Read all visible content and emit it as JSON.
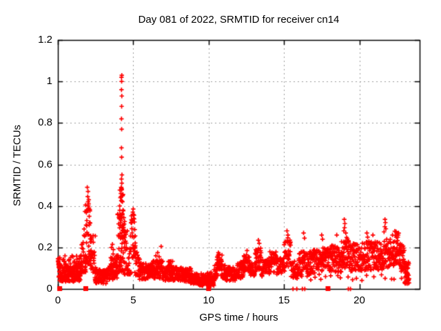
{
  "chart_data": {
    "type": "scatter",
    "title": "Day 081 of 2022, SRMTID for receiver cn14",
    "xlabel": "GPS time / hours",
    "ylabel": "SRMTID / TECUs",
    "xlim": [
      0,
      24
    ],
    "ylim": [
      0,
      1.2
    ],
    "xticks": {
      "values": [
        0,
        5,
        10,
        15,
        20
      ],
      "labels": [
        "0",
        "5",
        "10",
        "15",
        "20"
      ]
    },
    "yticks": {
      "values": [
        0,
        0.2,
        0.4,
        0.6,
        0.8,
        1.0,
        1.2
      ],
      "labels": [
        "0",
        "0.2",
        "0.4",
        "0.6",
        "0.8",
        "1",
        "1.2"
      ]
    },
    "grid": true,
    "legend": "none",
    "marker": "plus",
    "colors": {
      "points": "#ff0000",
      "grid": "#999999",
      "border": "#000000",
      "background": "#ffffff",
      "text": "#000000"
    },
    "seed": 20220811,
    "series": [
      {
        "name": "SRMTID",
        "bands": [
          [
            0.0,
            0.15,
            10,
            0.1,
            0.155,
            1
          ],
          [
            0.05,
            1.55,
            150,
            0.035,
            0.115,
            1
          ],
          [
            0.3,
            1.5,
            40,
            0.1,
            0.16,
            2
          ],
          [
            1.5,
            1.85,
            35,
            0.08,
            0.3,
            2
          ],
          [
            1.8,
            2.2,
            45,
            0.12,
            0.42,
            1.5
          ],
          [
            2.15,
            2.5,
            30,
            0.08,
            0.28,
            2
          ],
          [
            2.45,
            3.3,
            90,
            0.025,
            0.095,
            1
          ],
          [
            3.3,
            3.95,
            60,
            0.04,
            0.13,
            1
          ],
          [
            3.5,
            3.95,
            14,
            0.12,
            0.175,
            1
          ],
          [
            3.95,
            4.45,
            70,
            0.08,
            0.38,
            1.6
          ],
          [
            4.1,
            4.35,
            25,
            0.22,
            0.5,
            1
          ],
          [
            4.4,
            4.85,
            40,
            0.07,
            0.28,
            1.6
          ],
          [
            4.85,
            5.15,
            30,
            0.15,
            0.36,
            1.2
          ],
          [
            5.1,
            5.45,
            25,
            0.06,
            0.18,
            1.4
          ],
          [
            5.4,
            6.3,
            90,
            0.045,
            0.125,
            1
          ],
          [
            6.3,
            7.0,
            70,
            0.05,
            0.14,
            1
          ],
          [
            7.0,
            8.3,
            110,
            0.04,
            0.105,
            1
          ],
          [
            7.3,
            7.7,
            15,
            0.1,
            0.135,
            1
          ],
          [
            8.3,
            8.85,
            55,
            0.035,
            0.1,
            1
          ],
          [
            8.8,
            9.35,
            55,
            0.025,
            0.075,
            1
          ],
          [
            9.3,
            10.35,
            115,
            0.015,
            0.055,
            1
          ],
          [
            9.5,
            10.25,
            30,
            0.05,
            0.08,
            2
          ],
          [
            10.35,
            10.6,
            25,
            0.04,
            0.12,
            1.3
          ],
          [
            10.55,
            10.9,
            30,
            0.08,
            0.17,
            1
          ],
          [
            10.85,
            11.15,
            25,
            0.05,
            0.12,
            1.3
          ],
          [
            11.1,
            11.9,
            70,
            0.04,
            0.105,
            1
          ],
          [
            11.9,
            12.4,
            45,
            0.05,
            0.13,
            1
          ],
          [
            12.3,
            12.75,
            35,
            0.08,
            0.165,
            1
          ],
          [
            12.7,
            13.15,
            40,
            0.06,
            0.13,
            1
          ],
          [
            13.1,
            13.5,
            35,
            0.09,
            0.2,
            1.2
          ],
          [
            13.5,
            14.05,
            45,
            0.06,
            0.14,
            1
          ],
          [
            14.0,
            14.5,
            40,
            0.08,
            0.18,
            1.2
          ],
          [
            14.5,
            15.05,
            45,
            0.07,
            0.15,
            1
          ],
          [
            15.0,
            15.45,
            35,
            0.1,
            0.25,
            1.2
          ],
          [
            15.45,
            16.0,
            45,
            0.05,
            0.15,
            1
          ],
          [
            16.0,
            16.7,
            60,
            0.06,
            0.18,
            1
          ],
          [
            16.7,
            17.4,
            60,
            0.07,
            0.19,
            1
          ],
          [
            17.4,
            18.1,
            60,
            0.08,
            0.2,
            1
          ],
          [
            18.1,
            18.8,
            60,
            0.08,
            0.21,
            1
          ],
          [
            18.8,
            19.3,
            45,
            0.1,
            0.25,
            1
          ],
          [
            19.3,
            20.2,
            75,
            0.08,
            0.22,
            1
          ],
          [
            20.2,
            21.0,
            70,
            0.09,
            0.23,
            1
          ],
          [
            21.0,
            21.8,
            70,
            0.09,
            0.23,
            1
          ],
          [
            21.8,
            22.35,
            50,
            0.1,
            0.24,
            1
          ],
          [
            22.35,
            22.65,
            30,
            0.12,
            0.28,
            1
          ],
          [
            22.65,
            23.0,
            35,
            0.08,
            0.22,
            1
          ],
          [
            23.0,
            23.3,
            40,
            0.025,
            0.13,
            1
          ],
          [
            16.5,
            23.0,
            18,
            0.03,
            0.07,
            1
          ]
        ],
        "points": [
          [
            0.02,
            0.145
          ],
          [
            0.03,
            0.13
          ],
          [
            0.05,
            0.12
          ],
          [
            0.02,
            0.135
          ],
          [
            1.95,
            0.49
          ],
          [
            2.0,
            0.47
          ],
          [
            1.98,
            0.445
          ],
          [
            2.04,
            0.41
          ],
          [
            2.02,
            0.4
          ],
          [
            1.9,
            0.375
          ],
          [
            2.08,
            0.35
          ],
          [
            1.92,
            0.33
          ],
          [
            2.12,
            0.32
          ],
          [
            2.0,
            0.42
          ],
          [
            2.05,
            0.43
          ],
          [
            3.55,
            0.2
          ],
          [
            3.62,
            0.215
          ],
          [
            3.68,
            0.19
          ],
          [
            4.24,
            1.03
          ],
          [
            4.22,
            1.02
          ],
          [
            4.23,
            1.0
          ],
          [
            4.22,
            0.96
          ],
          [
            4.24,
            0.93
          ],
          [
            4.23,
            0.88
          ],
          [
            4.22,
            0.82
          ],
          [
            4.23,
            0.77
          ],
          [
            4.22,
            0.68
          ],
          [
            4.23,
            0.635
          ],
          [
            4.25,
            0.55
          ],
          [
            4.22,
            0.53
          ],
          [
            4.24,
            0.51
          ],
          [
            4.2,
            0.49
          ],
          [
            4.18,
            0.46
          ],
          [
            4.15,
            0.44
          ],
          [
            4.28,
            0.42
          ],
          [
            4.1,
            0.4
          ],
          [
            4.32,
            0.38
          ],
          [
            5.0,
            0.385
          ],
          [
            4.97,
            0.37
          ],
          [
            5.05,
            0.355
          ],
          [
            5.02,
            0.34
          ],
          [
            6.5,
            0.16
          ],
          [
            6.62,
            0.175
          ],
          [
            6.72,
            0.155
          ],
          [
            6.85,
            0.205
          ],
          [
            6.9,
            0.13
          ],
          [
            10.65,
            0.175
          ],
          [
            10.7,
            0.165
          ],
          [
            10.6,
            0.155
          ],
          [
            12.55,
            0.185
          ],
          [
            13.3,
            0.235
          ],
          [
            13.36,
            0.22
          ],
          [
            15.2,
            0.28
          ],
          [
            15.26,
            0.26
          ],
          [
            16.3,
            0.27
          ],
          [
            16.36,
            0.245
          ],
          [
            17.5,
            0.26
          ],
          [
            17.56,
            0.24
          ],
          [
            18.5,
            0.26
          ],
          [
            19.0,
            0.335
          ],
          [
            19.04,
            0.315
          ],
          [
            19.02,
            0.295
          ],
          [
            19.1,
            0.27
          ],
          [
            18.97,
            0.28
          ],
          [
            20.5,
            0.27
          ],
          [
            20.55,
            0.25
          ],
          [
            20.9,
            0.26
          ],
          [
            21.7,
            0.335
          ],
          [
            21.73,
            0.32
          ],
          [
            21.69,
            0.3
          ],
          [
            21.76,
            0.29
          ],
          [
            21.64,
            0.275
          ],
          [
            22.2,
            0.26
          ],
          [
            22.45,
            0.25
          ],
          [
            23.1,
            0.06
          ],
          [
            23.15,
            0.08
          ],
          [
            23.22,
            0.045
          ],
          [
            23.28,
            0.03
          ]
        ],
        "zero_squares": [
          0.12,
          1.85,
          10.0,
          17.92
        ],
        "zero_plusses": [
          15.6,
          15.85,
          16.22,
          16.38,
          19.27,
          19.41
        ]
      }
    ]
  }
}
